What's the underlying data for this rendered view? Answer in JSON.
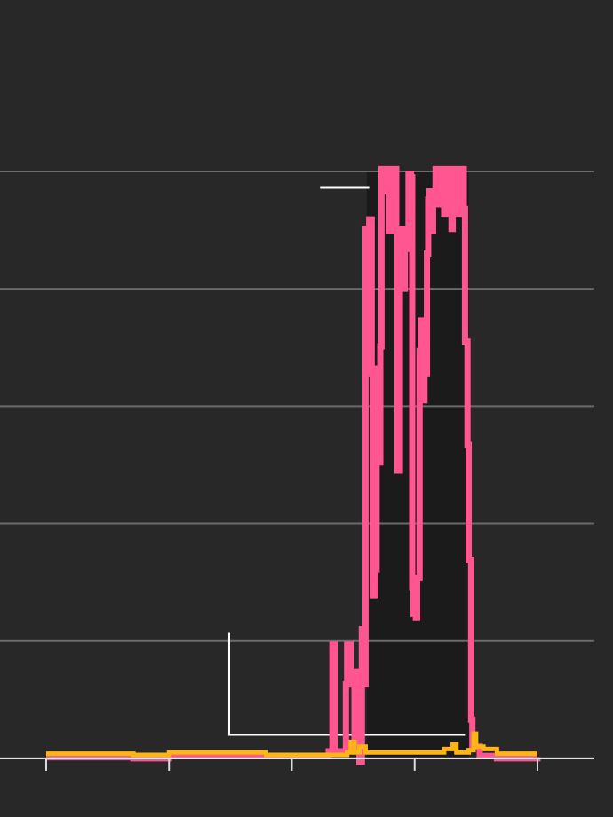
{
  "chart_data": {
    "type": "line",
    "title": "",
    "xlabel": "",
    "ylabel": "",
    "xlim": [
      -0.376,
      4.615
    ],
    "ylim": [
      -0.5,
      6.46
    ],
    "xticks": [
      0,
      1,
      2,
      3,
      4
    ],
    "ygrid": [
      1,
      2,
      3,
      4,
      5
    ],
    "grid": true,
    "background": "#282828",
    "colors": {
      "grid": "#6b6b6b",
      "axis": "#ffffff",
      "shade": "#1b1b1b",
      "annotation": "#ffffff"
    },
    "shaded_region": {
      "x": [
        2.61,
        3.44
      ],
      "y": [
        0,
        5.0
      ]
    },
    "annotations": [
      {
        "points": [
          [
            1.49,
            1.07
          ],
          [
            1.49,
            0.2
          ],
          [
            3.41,
            0.2
          ]
        ]
      },
      {
        "points": [
          [
            2.23,
            4.86
          ],
          [
            2.63,
            4.86
          ]
        ]
      }
    ],
    "series": [
      {
        "color": "#ff5591",
        "x": [
          0,
          0.71,
          1.0,
          2.08,
          2.3,
          2.32,
          2.33,
          2.34,
          2.35,
          2.43,
          2.44,
          2.45,
          2.47,
          2.48,
          2.5,
          2.51,
          2.52,
          2.54,
          2.55,
          2.57,
          2.58,
          2.6,
          2.6,
          2.62,
          2.63,
          2.65,
          2.66,
          2.68,
          2.69,
          2.71,
          2.72,
          2.73,
          2.76,
          2.78,
          2.79,
          2.81,
          2.82,
          2.84,
          2.85,
          2.86,
          2.88,
          2.91,
          2.92,
          2.94,
          2.95,
          2.97,
          2.98,
          2.99,
          3.01,
          3.02,
          3.04,
          3.05,
          3.07,
          3.08,
          3.1,
          3.11,
          3.12,
          3.14,
          3.15,
          3.17,
          3.2,
          3.21,
          3.24,
          3.27,
          3.28,
          3.3,
          3.31,
          3.34,
          3.36,
          3.37,
          3.4,
          3.41,
          3.43,
          3.44,
          3.46,
          3.47,
          3.53,
          3.67,
          4.0
        ],
        "y": [
          0.01,
          0,
          0.02,
          0.02,
          0.06,
          0.06,
          0.97,
          0.97,
          0.06,
          0.06,
          0.63,
          0.97,
          0.97,
          0.63,
          0.74,
          0.06,
          0.74,
          0.06,
          -0.03,
          1.1,
          0.63,
          0.95,
          4.51,
          3.28,
          4.59,
          3.28,
          1.39,
          1.61,
          3.32,
          2.52,
          3.51,
          5.02,
          5.02,
          4.83,
          4.49,
          5.02,
          4.53,
          5.02,
          4.49,
          2.45,
          4.51,
          4.0,
          4.34,
          4.49,
          4.98,
          4.95,
          1.46,
          1.23,
          1.2,
          1.54,
          3.47,
          3.73,
          3.05,
          3.28,
          4.3,
          4.76,
          4.83,
          4.49,
          4.83,
          5.02,
          4.72,
          5.02,
          4.64,
          5.02,
          4.64,
          4.51,
          5.02,
          4.64,
          4.68,
          5.02,
          4.68,
          3.55,
          2.67,
          1.69,
          0.33,
          0.1,
          0.02,
          0,
          0.01
        ]
      },
      {
        "color": "#ffb612",
        "x": [
          0,
          0.71,
          1.0,
          1.43,
          1.79,
          2.45,
          2.48,
          2.51,
          2.55,
          2.6,
          3.24,
          3.31,
          3.34,
          3.44,
          3.48,
          3.5,
          3.56,
          3.67,
          4.0
        ],
        "y": [
          0.04,
          0.03,
          0.05,
          0.05,
          0.03,
          0.05,
          0.14,
          0.05,
          0.1,
          0.05,
          0.08,
          0.12,
          0.05,
          0.07,
          0.21,
          0.1,
          0.08,
          0.04,
          0.04
        ]
      }
    ]
  }
}
